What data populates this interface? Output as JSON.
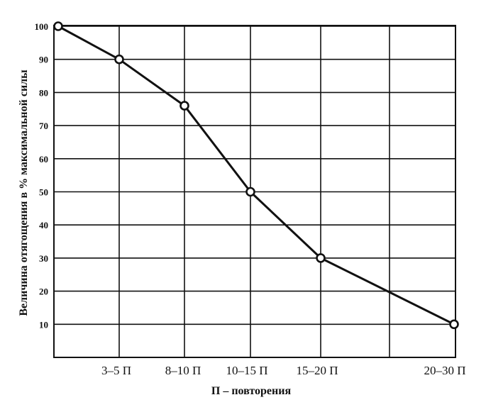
{
  "chart_data": {
    "type": "line",
    "title": "",
    "xlabel": "П – повторения",
    "ylabel": "Величина отягощения в % максимальной силы",
    "ylim": [
      0,
      100
    ],
    "yticks": [
      10,
      20,
      30,
      40,
      50,
      60,
      70,
      80,
      90,
      100
    ],
    "grid": true,
    "legend": "none",
    "x_tick_labels": [
      "3–5 П",
      "8–10 П",
      "10–15 П",
      "15–20 П",
      "20–30 П"
    ],
    "points": [
      {
        "label": "",
        "y": 100
      },
      {
        "label": "3–5 П",
        "y": 90
      },
      {
        "label": "8–10 П",
        "y": 76
      },
      {
        "label": "10–15 П",
        "y": 50
      },
      {
        "label": "15–20 П",
        "y": 30
      },
      {
        "label": "20–30 П",
        "y": 10
      }
    ],
    "colors": {
      "line": "#111111",
      "marker_fill": "#ffffff",
      "grid": "#111111"
    }
  }
}
